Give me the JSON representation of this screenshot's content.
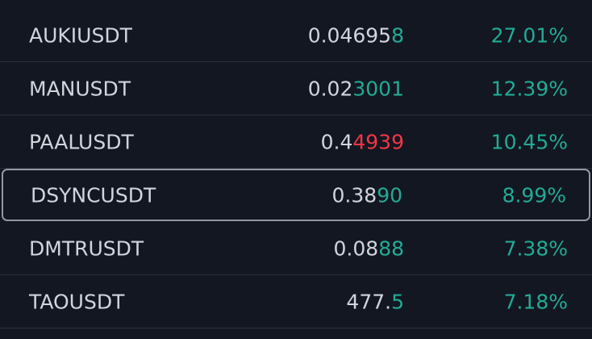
{
  "rows": [
    {
      "symbol": "AUKIUSDT",
      "price": {
        "base": "0.04695",
        "changed": "8",
        "direction": "up"
      },
      "change": "27.01%"
    },
    {
      "symbol": "MANUSDT",
      "price": {
        "base": "0.02",
        "changed": "3001",
        "direction": "up"
      },
      "change": "12.39%"
    },
    {
      "symbol": "PAALUSDT",
      "price": {
        "base": "0.4",
        "changed": "4939",
        "direction": "down"
      },
      "change": "10.45%"
    },
    {
      "symbol": "DSYNCUSDT",
      "price": {
        "base": "0.38",
        "changed": "90",
        "direction": "up"
      },
      "change": "8.99%"
    },
    {
      "symbol": "DMTRUSDT",
      "price": {
        "base": "0.08",
        "changed": "88",
        "direction": "up"
      },
      "change": "7.38%"
    },
    {
      "symbol": "TAOUSDT",
      "price": {
        "base": "477.",
        "changed": "5",
        "direction": "up"
      },
      "change": "7.18%"
    }
  ],
  "selected": 3
}
